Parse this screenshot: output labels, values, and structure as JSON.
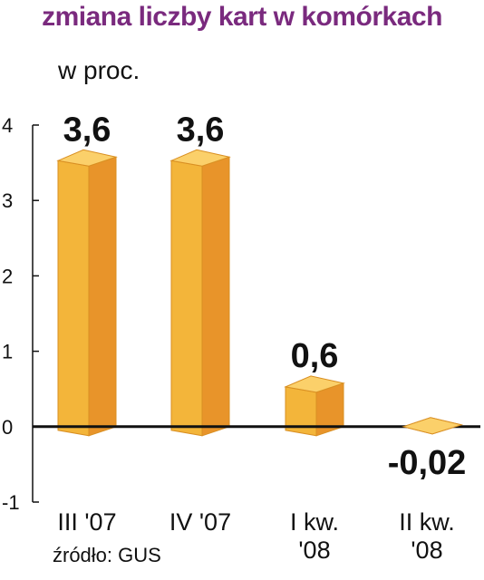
{
  "chart_data": {
    "type": "bar",
    "title": "zmiana liczby kart w komórkach",
    "ylabel": "w proc.",
    "source": "źródło: GUS",
    "categories": [
      [
        "III '07"
      ],
      [
        "IV '07"
      ],
      [
        "I kw.",
        "'08"
      ],
      [
        "II kw.",
        "'08"
      ]
    ],
    "values": [
      3.6,
      3.6,
      0.6,
      -0.02
    ],
    "data_labels": [
      "3,6",
      "3,6",
      "0,6",
      "-0,02"
    ],
    "ylim": [
      -1,
      4
    ],
    "yticks": [
      4,
      3,
      2,
      1,
      0,
      -1
    ],
    "grid": false,
    "colors": {
      "bar_front": "#f3b53a",
      "bar_side": "#e8942a",
      "bar_top": "#fbd06a",
      "title": "#7a2a7e"
    }
  }
}
